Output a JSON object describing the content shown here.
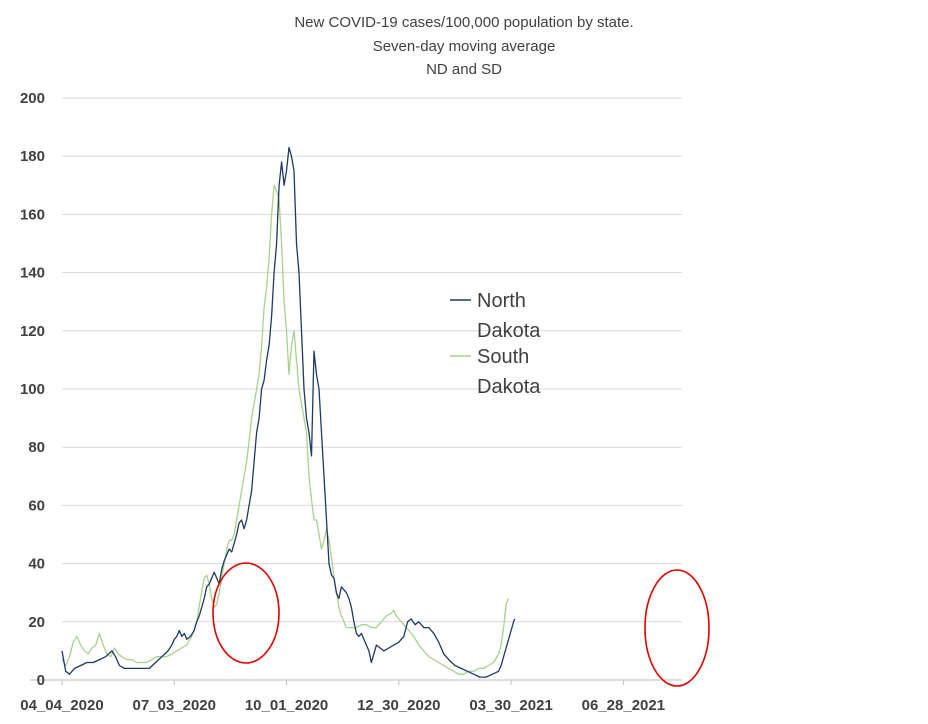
{
  "chart_data": {
    "type": "line",
    "title_lines": [
      "New COVID-19 cases/100,000 population by state.",
      "Seven-day moving average",
      "ND and SD"
    ],
    "x_tick_labels": [
      "04_04_2020",
      "07_03_2020",
      "10_01_2020",
      "12_30_2020",
      "03_30_2021",
      "06_28_2021"
    ],
    "x_range_days": [
      0,
      497
    ],
    "x_tick_days": [
      0,
      90,
      180,
      270,
      360,
      450
    ],
    "ylim": [
      0,
      200
    ],
    "y_ticks": [
      0,
      20,
      40,
      60,
      80,
      100,
      120,
      140,
      160,
      180,
      200
    ],
    "grid": "horizontal",
    "legend": {
      "placement": "center-right",
      "entries": [
        {
          "label_lines": [
            "North",
            "Dakota"
          ],
          "color": "#1f3864"
        },
        {
          "label_lines": [
            "South",
            "Dakota"
          ],
          "color": "#a9d18e"
        }
      ]
    },
    "series": [
      {
        "name": "North Dakota",
        "color": "#1f3864",
        "points": [
          [
            0,
            10
          ],
          [
            3,
            3
          ],
          [
            6,
            2
          ],
          [
            10,
            4
          ],
          [
            15,
            5
          ],
          [
            20,
            6
          ],
          [
            25,
            6
          ],
          [
            30,
            7
          ],
          [
            35,
            8
          ],
          [
            40,
            10
          ],
          [
            43,
            8
          ],
          [
            46,
            5
          ],
          [
            50,
            4
          ],
          [
            55,
            4
          ],
          [
            60,
            4
          ],
          [
            65,
            4
          ],
          [
            70,
            4
          ],
          [
            75,
            6
          ],
          [
            80,
            8
          ],
          [
            85,
            10
          ],
          [
            88,
            12
          ],
          [
            90,
            14
          ],
          [
            92,
            15
          ],
          [
            94,
            17
          ],
          [
            96,
            15
          ],
          [
            98,
            16
          ],
          [
            100,
            14
          ],
          [
            103,
            15
          ],
          [
            106,
            17
          ],
          [
            108,
            20
          ],
          [
            110,
            22
          ],
          [
            112,
            25
          ],
          [
            114,
            28
          ],
          [
            116,
            32
          ],
          [
            118,
            33
          ],
          [
            120,
            35
          ],
          [
            122,
            37
          ],
          [
            124,
            35
          ],
          [
            126,
            33
          ],
          [
            128,
            38
          ],
          [
            130,
            41
          ],
          [
            132,
            43
          ],
          [
            134,
            45
          ],
          [
            136,
            44
          ],
          [
            138,
            47
          ],
          [
            140,
            50
          ],
          [
            142,
            54
          ],
          [
            144,
            55
          ],
          [
            146,
            52
          ],
          [
            148,
            55
          ],
          [
            150,
            60
          ],
          [
            152,
            65
          ],
          [
            154,
            75
          ],
          [
            156,
            85
          ],
          [
            158,
            90
          ],
          [
            160,
            100
          ],
          [
            162,
            103
          ],
          [
            164,
            110
          ],
          [
            166,
            115
          ],
          [
            168,
            125
          ],
          [
            170,
            140
          ],
          [
            172,
            150
          ],
          [
            174,
            170
          ],
          [
            176,
            178
          ],
          [
            178,
            170
          ],
          [
            180,
            175
          ],
          [
            182,
            183
          ],
          [
            184,
            180
          ],
          [
            186,
            175
          ],
          [
            188,
            150
          ],
          [
            190,
            140
          ],
          [
            192,
            120
          ],
          [
            194,
            100
          ],
          [
            196,
            90
          ],
          [
            198,
            85
          ],
          [
            200,
            77
          ],
          [
            202,
            113
          ],
          [
            204,
            105
          ],
          [
            206,
            100
          ],
          [
            208,
            85
          ],
          [
            210,
            70
          ],
          [
            212,
            55
          ],
          [
            214,
            40
          ],
          [
            216,
            36
          ],
          [
            218,
            35
          ],
          [
            220,
            30
          ],
          [
            222,
            28
          ],
          [
            224,
            32
          ],
          [
            226,
            31
          ],
          [
            228,
            30
          ],
          [
            230,
            28
          ],
          [
            232,
            25
          ],
          [
            234,
            20
          ],
          [
            236,
            16
          ],
          [
            238,
            15
          ],
          [
            240,
            16
          ],
          [
            242,
            14
          ],
          [
            244,
            12
          ],
          [
            246,
            10
          ],
          [
            248,
            6
          ],
          [
            250,
            9
          ],
          [
            252,
            12
          ],
          [
            255,
            11
          ],
          [
            258,
            10
          ],
          [
            262,
            11
          ],
          [
            266,
            12
          ],
          [
            270,
            13
          ],
          [
            274,
            15
          ],
          [
            277,
            20
          ],
          [
            280,
            21
          ],
          [
            283,
            19
          ],
          [
            286,
            20
          ],
          [
            290,
            18
          ],
          [
            294,
            18
          ],
          [
            298,
            16
          ],
          [
            302,
            13
          ],
          [
            306,
            9
          ],
          [
            310,
            7
          ],
          [
            315,
            5
          ],
          [
            320,
            4
          ],
          [
            325,
            3
          ],
          [
            330,
            2
          ],
          [
            335,
            1
          ],
          [
            340,
            1
          ],
          [
            345,
            2
          ],
          [
            350,
            3
          ],
          [
            352,
            5
          ],
          [
            354,
            8
          ],
          [
            356,
            11
          ],
          [
            358,
            14
          ],
          [
            360,
            17
          ],
          [
            362,
            20
          ],
          [
            363,
            21
          ]
        ]
      },
      {
        "name": "South Dakota",
        "color": "#a9d18e",
        "points": [
          [
            0,
            7
          ],
          [
            3,
            5
          ],
          [
            6,
            8
          ],
          [
            9,
            13
          ],
          [
            12,
            15
          ],
          [
            15,
            12
          ],
          [
            18,
            10
          ],
          [
            21,
            9
          ],
          [
            24,
            11
          ],
          [
            27,
            12
          ],
          [
            30,
            16
          ],
          [
            33,
            12
          ],
          [
            36,
            9
          ],
          [
            39,
            8
          ],
          [
            42,
            11
          ],
          [
            45,
            9
          ],
          [
            48,
            8
          ],
          [
            52,
            7
          ],
          [
            56,
            7
          ],
          [
            60,
            6
          ],
          [
            64,
            6
          ],
          [
            68,
            6
          ],
          [
            72,
            7
          ],
          [
            76,
            8
          ],
          [
            80,
            8
          ],
          [
            84,
            8
          ],
          [
            88,
            9
          ],
          [
            92,
            10
          ],
          [
            96,
            11
          ],
          [
            100,
            12
          ],
          [
            104,
            15
          ],
          [
            108,
            20
          ],
          [
            111,
            28
          ],
          [
            114,
            35
          ],
          [
            116,
            36
          ],
          [
            118,
            33
          ],
          [
            120,
            28
          ],
          [
            122,
            25
          ],
          [
            124,
            26
          ],
          [
            126,
            30
          ],
          [
            128,
            35
          ],
          [
            130,
            40
          ],
          [
            132,
            45
          ],
          [
            134,
            48
          ],
          [
            136,
            48
          ],
          [
            138,
            50
          ],
          [
            140,
            55
          ],
          [
            142,
            60
          ],
          [
            144,
            65
          ],
          [
            146,
            70
          ],
          [
            148,
            75
          ],
          [
            150,
            82
          ],
          [
            152,
            90
          ],
          [
            154,
            95
          ],
          [
            156,
            100
          ],
          [
            158,
            105
          ],
          [
            160,
            115
          ],
          [
            162,
            128
          ],
          [
            164,
            135
          ],
          [
            166,
            145
          ],
          [
            168,
            160
          ],
          [
            170,
            170
          ],
          [
            172,
            168
          ],
          [
            174,
            165
          ],
          [
            176,
            150
          ],
          [
            178,
            130
          ],
          [
            180,
            120
          ],
          [
            182,
            105
          ],
          [
            184,
            115
          ],
          [
            186,
            120
          ],
          [
            188,
            110
          ],
          [
            190,
            100
          ],
          [
            192,
            95
          ],
          [
            194,
            90
          ],
          [
            196,
            85
          ],
          [
            198,
            70
          ],
          [
            200,
            62
          ],
          [
            202,
            55
          ],
          [
            204,
            55
          ],
          [
            206,
            50
          ],
          [
            208,
            45
          ],
          [
            210,
            48
          ],
          [
            212,
            52
          ],
          [
            214,
            48
          ],
          [
            216,
            42
          ],
          [
            218,
            35
          ],
          [
            220,
            30
          ],
          [
            222,
            25
          ],
          [
            224,
            22
          ],
          [
            226,
            20
          ],
          [
            228,
            18
          ],
          [
            232,
            18
          ],
          [
            236,
            18
          ],
          [
            240,
            19
          ],
          [
            244,
            19
          ],
          [
            248,
            18
          ],
          [
            252,
            18
          ],
          [
            256,
            20
          ],
          [
            260,
            22
          ],
          [
            264,
            23
          ],
          [
            266,
            24
          ],
          [
            268,
            22
          ],
          [
            270,
            21
          ],
          [
            274,
            19
          ],
          [
            278,
            17
          ],
          [
            282,
            15
          ],
          [
            286,
            12
          ],
          [
            290,
            10
          ],
          [
            294,
            8
          ],
          [
            298,
            7
          ],
          [
            302,
            6
          ],
          [
            306,
            5
          ],
          [
            310,
            4
          ],
          [
            314,
            3
          ],
          [
            318,
            2
          ],
          [
            322,
            2
          ],
          [
            326,
            3
          ],
          [
            330,
            3
          ],
          [
            334,
            4
          ],
          [
            338,
            4
          ],
          [
            342,
            5
          ],
          [
            346,
            6
          ],
          [
            350,
            9
          ],
          [
            352,
            12
          ],
          [
            354,
            18
          ],
          [
            356,
            26
          ],
          [
            358,
            28
          ]
        ]
      }
    ]
  }
}
